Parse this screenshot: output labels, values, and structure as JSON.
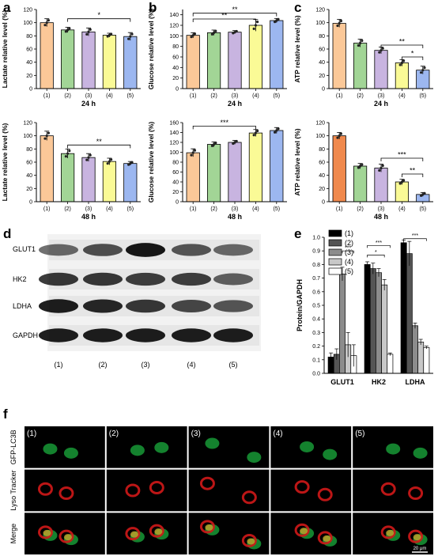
{
  "figure": {
    "panel_letters": [
      "a",
      "b",
      "c",
      "d",
      "e",
      "f"
    ],
    "colors": {
      "g1": "#fbc898",
      "g2": "#a2d596",
      "g3": "#c8b4e0",
      "g4": "#fafa96",
      "g5": "#9cb7f0",
      "c_48_g1": "#f0894d"
    },
    "bar_charts": [
      {
        "id": "a-24",
        "letter": "a",
        "ylabel": "Lactate relative level (%)",
        "xlabel": "24 h",
        "ylim": [
          0,
          120
        ],
        "ticks": [
          0,
          20,
          40,
          60,
          80,
          100,
          120
        ]
      },
      {
        "id": "a-48",
        "letter": "",
        "ylabel": "Lactate relative level (%)",
        "xlabel": "48 h",
        "ylim": [
          0,
          120
        ],
        "ticks": [
          0,
          20,
          40,
          60,
          80,
          100,
          120
        ]
      },
      {
        "id": "b-24",
        "letter": "b",
        "ylabel": "Glucose relative level (%)",
        "xlabel": "24 h",
        "ylim": [
          0,
          150
        ],
        "ticks": [
          0,
          20,
          40,
          60,
          80,
          100,
          120,
          140
        ]
      },
      {
        "id": "b-48",
        "letter": "",
        "ylabel": "Glucose relative level (%)",
        "xlabel": "48 h",
        "ylim": [
          0,
          160
        ],
        "ticks": [
          0,
          20,
          40,
          60,
          80,
          100,
          120,
          140,
          160
        ]
      },
      {
        "id": "c-24",
        "letter": "c",
        "ylabel": "ATP relative level (%)",
        "xlabel": "24 h",
        "ylim": [
          0,
          120
        ],
        "ticks": [
          0,
          20,
          40,
          60,
          80,
          100,
          120
        ]
      },
      {
        "id": "c-48",
        "letter": "",
        "ylabel": "ATP relative level (%)",
        "xlabel": "48 h",
        "ylim": [
          0,
          120
        ],
        "ticks": [
          0,
          20,
          40,
          60,
          80,
          100,
          120
        ]
      }
    ],
    "group_labels": [
      "(1)",
      "(2)",
      "(3)",
      "(4)",
      "(5)"
    ],
    "western_blot": {
      "letter": "d",
      "proteins": [
        "GLUT1",
        "HK2",
        "LDHA",
        "GAPDH"
      ],
      "lanes": [
        "(1)",
        "(2)",
        "(3)",
        "(4)",
        "(5)"
      ]
    },
    "protein_chart": {
      "letter": "e",
      "ylabel": "Protein/GAPDH",
      "legend": [
        "(1)",
        "(2)",
        "(3)",
        "(4)",
        "(5)"
      ],
      "legend_colors": [
        "#000000",
        "#555555",
        "#8c8c8c",
        "#c8c8c8",
        "#ffffff"
      ]
    },
    "microscopy": {
      "letter": "f",
      "rows": [
        "GFP-LC3B",
        "Lyso Tracker",
        "Merge"
      ],
      "columns": [
        "(1)",
        "(2)",
        "(3)",
        "(4)",
        "(5)"
      ],
      "scale_bar": "20 μm"
    }
  },
  "chart_data": [
    {
      "type": "bar",
      "title": "",
      "xlabel": "24 h",
      "ylabel": "Lactate relative level (%)",
      "categories": [
        "(1)",
        "(2)",
        "(3)",
        "(4)",
        "(5)"
      ],
      "values": [
        100,
        89,
        86,
        81,
        79
      ],
      "errors": [
        6,
        4,
        6,
        3,
        6
      ],
      "ylim": [
        0,
        120
      ],
      "significance": [
        {
          "from": "(2)",
          "to": "(5)",
          "label": "*",
          "y": 106
        }
      ]
    },
    {
      "type": "bar",
      "title": "",
      "xlabel": "48 h",
      "ylabel": "Lactate relative level (%)",
      "categories": [
        "(1)",
        "(2)",
        "(3)",
        "(4)",
        "(5)"
      ],
      "values": [
        100,
        73,
        67,
        61,
        58
      ],
      "errors": [
        7,
        7,
        6,
        5,
        3
      ],
      "ylim": [
        0,
        120
      ],
      "significance": [
        {
          "from": "(2)",
          "to": "(5)",
          "label": "**",
          "y": 86
        }
      ]
    },
    {
      "type": "bar",
      "title": "",
      "xlabel": "24 h",
      "ylabel": "Glucose relative level (%)",
      "categories": [
        "(1)",
        "(2)",
        "(3)",
        "(4)",
        "(5)"
      ],
      "values": [
        101,
        106,
        107,
        120,
        129
      ],
      "errors": [
        5,
        5,
        3,
        11,
        4
      ],
      "ylim": [
        0,
        150
      ],
      "significance": [
        {
          "from": "(1)",
          "to": "(4)",
          "label": "**",
          "y": 132
        },
        {
          "from": "(1)",
          "to": "(5)",
          "label": "**",
          "y": 143
        }
      ]
    },
    {
      "type": "bar",
      "title": "",
      "xlabel": "48 h",
      "ylabel": "Glucose relative level (%)",
      "categories": [
        "(1)",
        "(2)",
        "(3)",
        "(4)",
        "(5)"
      ],
      "values": [
        99,
        116,
        120,
        139,
        144
      ],
      "errors": [
        8,
        5,
        4,
        7,
        6
      ],
      "ylim": [
        0,
        160
      ],
      "significance": [
        {
          "from": "(1)",
          "to": "(4)",
          "label": "***",
          "y": 153
        }
      ]
    },
    {
      "type": "bar",
      "title": "",
      "xlabel": "24 h",
      "ylabel": "ATP relative level (%)",
      "categories": [
        "(1)",
        "(2)",
        "(3)",
        "(4)",
        "(5)"
      ],
      "values": [
        99,
        69,
        58,
        39,
        28
      ],
      "errors": [
        6,
        6,
        5,
        5,
        6
      ],
      "ylim": [
        0,
        120
      ],
      "significance": [
        {
          "from": "(3)",
          "to": "(5)",
          "label": "**",
          "y": 66
        },
        {
          "from": "(4)",
          "to": "(5)",
          "label": "*",
          "y": 48
        }
      ]
    },
    {
      "type": "bar",
      "title": "",
      "xlabel": "48 h",
      "ylabel": "ATP relative level (%)",
      "categories": [
        "(1)",
        "(2)",
        "(3)",
        "(4)",
        "(5)"
      ],
      "values": [
        100,
        54,
        51,
        30,
        11
      ],
      "errors": [
        5,
        4,
        6,
        4,
        3
      ],
      "ylim": [
        0,
        120
      ],
      "significance": [
        {
          "from": "(3)",
          "to": "(5)",
          "label": "***",
          "y": 66
        },
        {
          "from": "(4)",
          "to": "(5)",
          "label": "**",
          "y": 42
        }
      ]
    },
    {
      "type": "bar",
      "title": "",
      "xlabel": "",
      "ylabel": "Protein/GAPDH",
      "categories": [
        "GLUT1",
        "HK2",
        "LDHA"
      ],
      "ylim": [
        0,
        1.0
      ],
      "series": [
        {
          "name": "(1)",
          "values": [
            0.12,
            0.8,
            0.96
          ],
          "errors": [
            0.03,
            0.02,
            0.02
          ]
        },
        {
          "name": "(2)",
          "values": [
            0.14,
            0.77,
            0.88
          ],
          "errors": [
            0.04,
            0.04,
            0.09
          ]
        },
        {
          "name": "(3)",
          "values": [
            0.73,
            0.74,
            0.35
          ],
          "errors": [
            0.05,
            0.03,
            0.02
          ]
        },
        {
          "name": "(4)",
          "values": [
            0.21,
            0.65,
            0.23
          ],
          "errors": [
            0.09,
            0.04,
            0.02
          ]
        },
        {
          "name": "(5)",
          "values": [
            0.13,
            0.14,
            0.19
          ],
          "errors": [
            0.08,
            0.01,
            0.01
          ]
        }
      ],
      "significance": [
        {
          "category": "GLUT1",
          "from": "(3)",
          "to": "(5)",
          "label": "***"
        },
        {
          "category": "HK2",
          "from": "(1)",
          "to": "(4)",
          "label": "*"
        },
        {
          "category": "HK2",
          "from": "(1)",
          "to": "(5)",
          "label": "***"
        },
        {
          "category": "LDHA",
          "from": "(1)",
          "to": "(5)",
          "label": "***"
        }
      ]
    }
  ]
}
